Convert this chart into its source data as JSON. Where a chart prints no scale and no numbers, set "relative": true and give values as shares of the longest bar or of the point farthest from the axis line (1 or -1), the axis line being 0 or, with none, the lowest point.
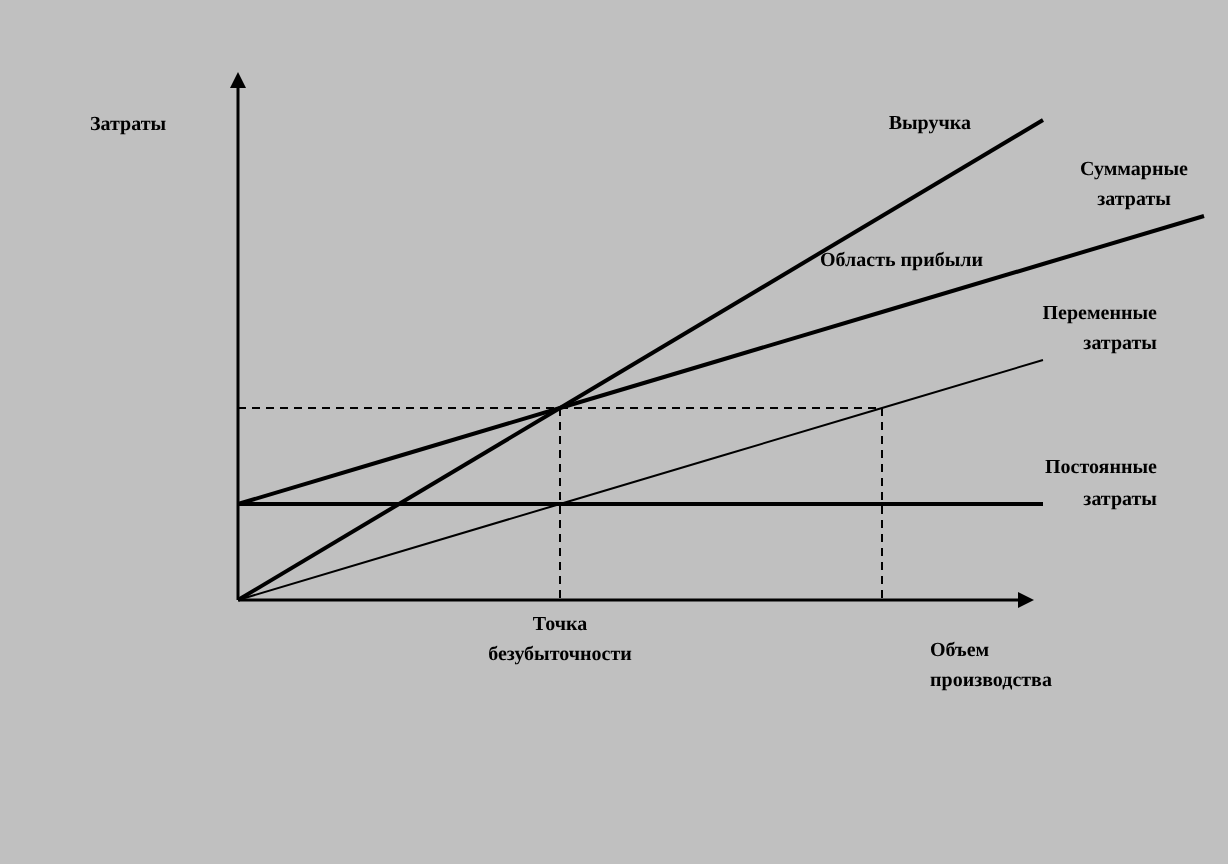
{
  "chart_data": {
    "type": "line",
    "relative": true,
    "xlabel": "Объем производства",
    "ylabel": "Затраты",
    "legend": false,
    "marker": "none",
    "categories": [
      null,
      null,
      null,
      null,
      null,
      null,
      null
    ],
    "series": [
      {
        "name": "Выручка",
        "color": "#000000",
        "values": [
          0,
          0.2,
          0.4,
          0.6,
          0.8,
          1,
          null
        ]
      },
      {
        "name": "Суммарные затраты",
        "color": "#000000",
        "values": [
          0.2,
          0.3,
          0.4,
          0.5,
          0.6,
          0.7,
          0.8
        ]
      },
      {
        "name": "Переменные затраты",
        "color": "#000000",
        "values": [
          0,
          0.1,
          0.2,
          0.3,
          0.4,
          0.5,
          null
        ]
      },
      {
        "name": "Постоянные затраты",
        "color": "#000000",
        "values": [
          0.2,
          0.2,
          0.2,
          0.2,
          0.2,
          0.2,
          null
        ]
      },
      {
        "color": "#000000",
        "line_style": "dashed",
        "values": [
          0.4,
          0.4,
          0.4,
          0.4,
          0.4,
          null,
          null
        ]
      }
    ],
    "annotations": [
      "Область прибыли",
      "Точка безубыточности"
    ]
  }
}
